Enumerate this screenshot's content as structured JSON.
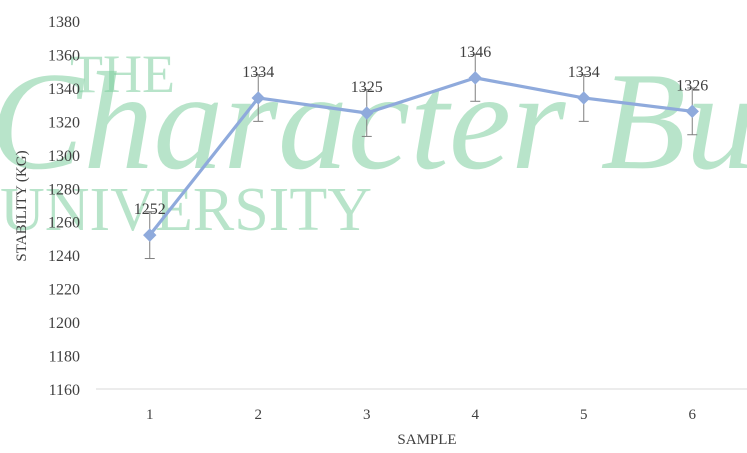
{
  "chart_data": {
    "type": "line",
    "x": [
      1,
      2,
      3,
      4,
      5,
      6
    ],
    "series": [
      {
        "values": [
          1252,
          1334,
          1325,
          1346,
          1334,
          1326
        ],
        "error": [
          14,
          14,
          14,
          14,
          14,
          14
        ],
        "labels": [
          "1252",
          "1334",
          "1325",
          "1346",
          "1334",
          "1326"
        ]
      }
    ],
    "xlabel": "SAMPLE",
    "ylabel": "STABILITY (KG)",
    "ylim": [
      1160,
      1380
    ],
    "yticks": [
      1160,
      1180,
      1200,
      1220,
      1240,
      1260,
      1280,
      1300,
      1320,
      1340,
      1360,
      1380
    ],
    "xticks": [
      1,
      2,
      3,
      4,
      5,
      6
    ],
    "grid": false,
    "legend": "none",
    "line_color": "#8faadc",
    "marker_color": "#8faadc"
  },
  "watermark": {
    "line1": "THE",
    "line2": "Character Build",
    "line3": "UNIVERSITY",
    "color": "#7fcf9f"
  }
}
